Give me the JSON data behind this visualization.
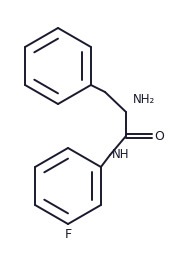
{
  "bg_color": "#ffffff",
  "line_color": "#1a1a2e",
  "text_color": "#1a1a2e",
  "label_NH2": "NH₂",
  "label_O": "O",
  "label_NH": "NH",
  "label_F": "F",
  "figsize": [
    1.92,
    2.54
  ],
  "dpi": 100
}
